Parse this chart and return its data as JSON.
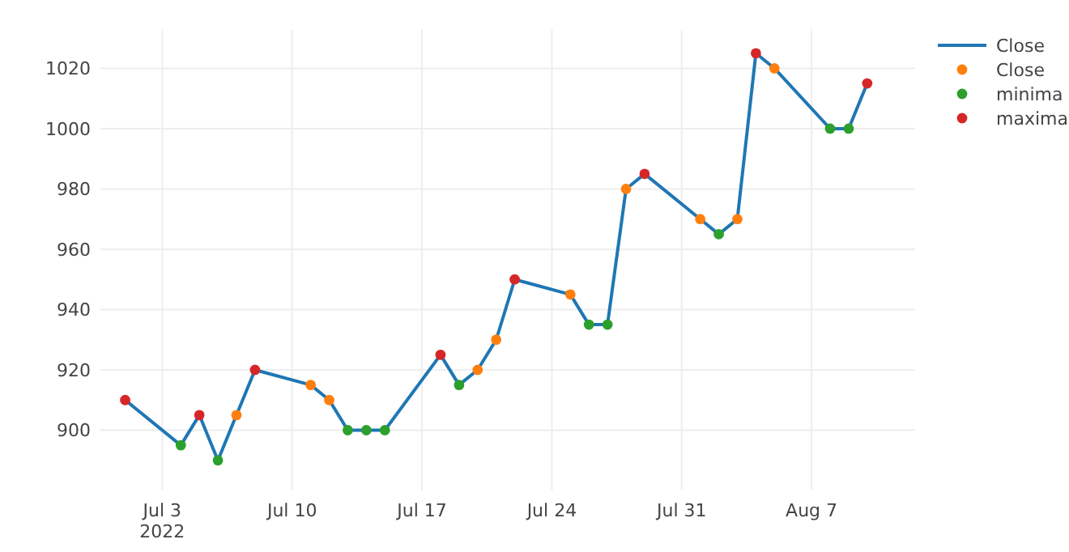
{
  "chart_data": {
    "type": "line",
    "xlim": [
      "2022-06-29T16:00",
      "2022-08-12T14:00"
    ],
    "ylim": [
      880,
      1033
    ],
    "xticks": [
      {
        "value": "2022-07-03",
        "label": "Jul 3\n2022"
      },
      {
        "value": "2022-07-10",
        "label": "Jul 10"
      },
      {
        "value": "2022-07-17",
        "label": "Jul 17"
      },
      {
        "value": "2022-07-24",
        "label": "Jul 24"
      },
      {
        "value": "2022-07-31",
        "label": "Jul 31"
      },
      {
        "value": "2022-08-07",
        "label": "Aug 7"
      }
    ],
    "yticks": [
      900,
      920,
      940,
      960,
      980,
      1000,
      1020
    ],
    "grid": true,
    "legend": "top right",
    "series": [
      {
        "name": "Close",
        "marker": "none",
        "color": "#1f77b4",
        "x": [
          "2022-07-01",
          "2022-07-04",
          "2022-07-05",
          "2022-07-06",
          "2022-07-07",
          "2022-07-08",
          "2022-07-11",
          "2022-07-12",
          "2022-07-13",
          "2022-07-14",
          "2022-07-15",
          "2022-07-18",
          "2022-07-19",
          "2022-07-20",
          "2022-07-21",
          "2022-07-22",
          "2022-07-25",
          "2022-07-26",
          "2022-07-27",
          "2022-07-28",
          "2022-07-29",
          "2022-08-01",
          "2022-08-02",
          "2022-08-03",
          "2022-08-04",
          "2022-08-05",
          "2022-08-08",
          "2022-08-09",
          "2022-08-10"
        ],
        "values": [
          910,
          895,
          905,
          890,
          905,
          920,
          915,
          910,
          900,
          900,
          900,
          925,
          915,
          920,
          930,
          950,
          945,
          935,
          935,
          980,
          985,
          970,
          965,
          970,
          1025,
          1020,
          1000,
          1000,
          1015
        ]
      },
      {
        "name": "Close",
        "type": "scatter",
        "marker": "circle",
        "color": "#ff7f0e",
        "x": [
          "2022-07-07",
          "2022-07-11",
          "2022-07-12",
          "2022-07-20",
          "2022-07-21",
          "2022-07-25",
          "2022-07-28",
          "2022-08-01",
          "2022-08-03",
          "2022-08-05"
        ],
        "values": [
          905,
          915,
          910,
          920,
          930,
          945,
          980,
          970,
          970,
          1020
        ]
      },
      {
        "name": "minima",
        "type": "scatter",
        "marker": "circle",
        "color": "#2ca02c",
        "x": [
          "2022-07-04",
          "2022-07-06",
          "2022-07-13",
          "2022-07-14",
          "2022-07-15",
          "2022-07-19",
          "2022-07-26",
          "2022-07-27",
          "2022-08-02",
          "2022-08-08",
          "2022-08-09"
        ],
        "values": [
          895,
          890,
          900,
          900,
          900,
          915,
          935,
          935,
          965,
          1000,
          1000
        ]
      },
      {
        "name": "maxima",
        "type": "scatter",
        "marker": "circle",
        "color": "#d62728",
        "x": [
          "2022-07-01",
          "2022-07-05",
          "2022-07-08",
          "2022-07-18",
          "2022-07-22",
          "2022-07-29",
          "2022-08-04",
          "2022-08-10"
        ],
        "values": [
          910,
          905,
          920,
          925,
          950,
          985,
          1025,
          1015
        ]
      }
    ]
  }
}
